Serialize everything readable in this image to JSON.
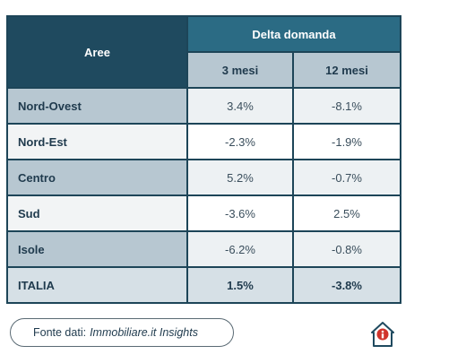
{
  "table": {
    "header_area": "Aree",
    "header_group": "Delta domanda",
    "sub_headers": [
      "3 mesi",
      "12 mesi"
    ],
    "rows": [
      {
        "area": "Nord-Ovest",
        "m3": "3.4%",
        "m12": "-8.1%"
      },
      {
        "area": "Nord-Est",
        "m3": "-2.3%",
        "m12": "-1.9%"
      },
      {
        "area": "Centro",
        "m3": "5.2%",
        "m12": "-0.7%"
      },
      {
        "area": "Sud",
        "m3": "-3.6%",
        "m12": "2.5%"
      },
      {
        "area": "Isole",
        "m3": "-6.2%",
        "m12": "-0.8%"
      },
      {
        "area": "ITALIA",
        "m3": "1.5%",
        "m12": "-3.8%"
      }
    ]
  },
  "source": {
    "label": "Fonte dati:",
    "value": "Immobiliare.it Insights"
  },
  "logo": {
    "icon": "house-info-icon"
  },
  "colors": {
    "header_dark": "#1f4a5f",
    "header_teal": "#2b6b84",
    "accent_red": "#d0342c"
  }
}
